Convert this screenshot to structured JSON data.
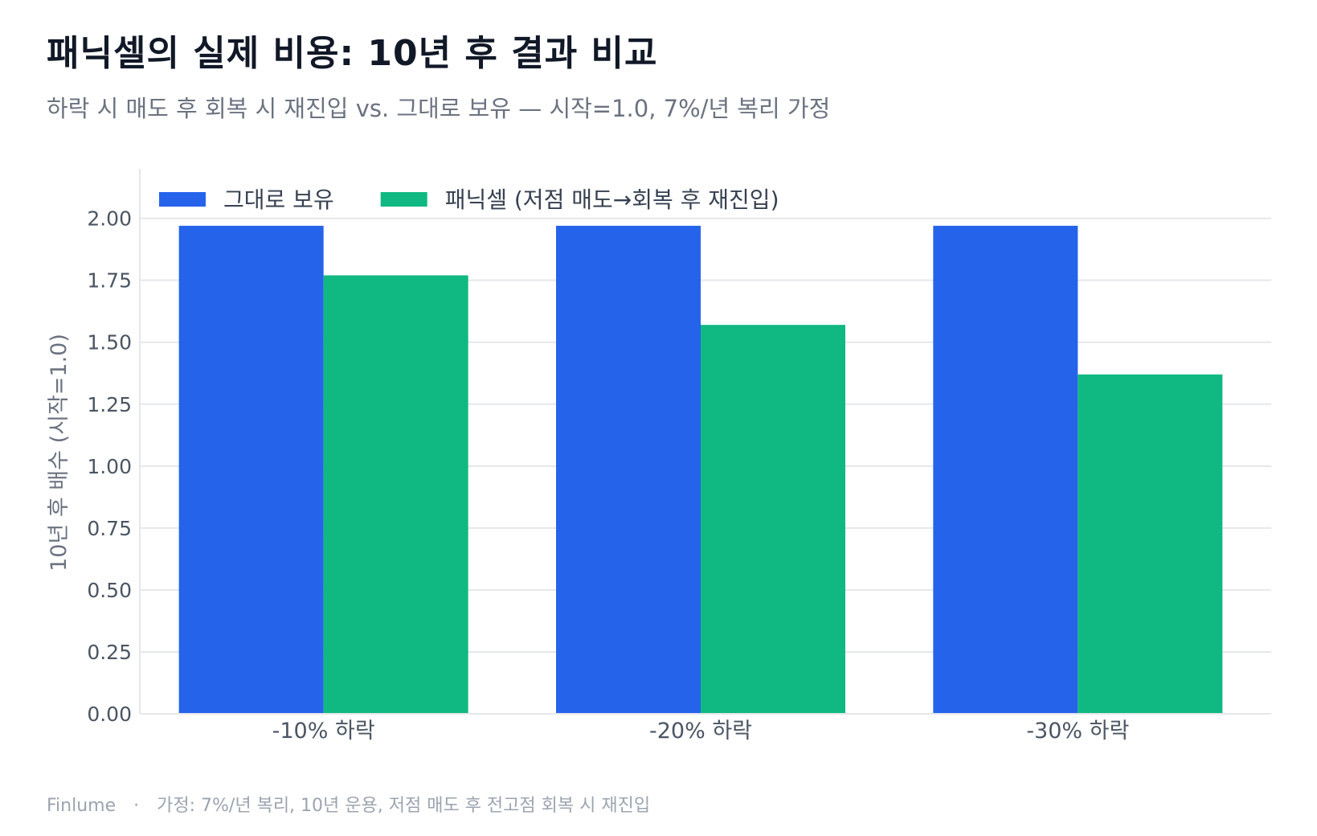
{
  "title": "패닉셀의 실제 비용: 10년 후 결과 비교",
  "subtitle": "하락 시 매도 후 회복 시 재진입 vs. 그대로 보유 — 시작=1.0, 7%/년 복리 가정",
  "footer": {
    "brand": "Finlume",
    "separator": "·",
    "note": "가정: 7%/년 복리, 10년 운용, 저점 매도 후 전고점 회복 시 재진입"
  },
  "colors": {
    "hold": "#2563eb",
    "panic": "#10b981",
    "grid": "#e5e7eb",
    "axis_text": "#6b7280",
    "tick_text": "#4b5563"
  },
  "chart_data": {
    "type": "bar",
    "categories": [
      "-10% 하락",
      "-20% 하락",
      "-30% 하락"
    ],
    "series": [
      {
        "name": "그대로 보유",
        "values": [
          1.97,
          1.97,
          1.97
        ]
      },
      {
        "name": "패닉셀 (저점 매도→회복 후 재진입)",
        "values": [
          1.77,
          1.57,
          1.37
        ]
      }
    ],
    "ylabel": "10년 후 배수 (시작=1.0)",
    "xlabel": "",
    "ylim": [
      0,
      2.2
    ],
    "yticks": [
      "0.00",
      "0.25",
      "0.50",
      "0.75",
      "1.00",
      "1.25",
      "1.50",
      "1.75",
      "2.00"
    ],
    "grid": true,
    "legend": "top-left"
  }
}
